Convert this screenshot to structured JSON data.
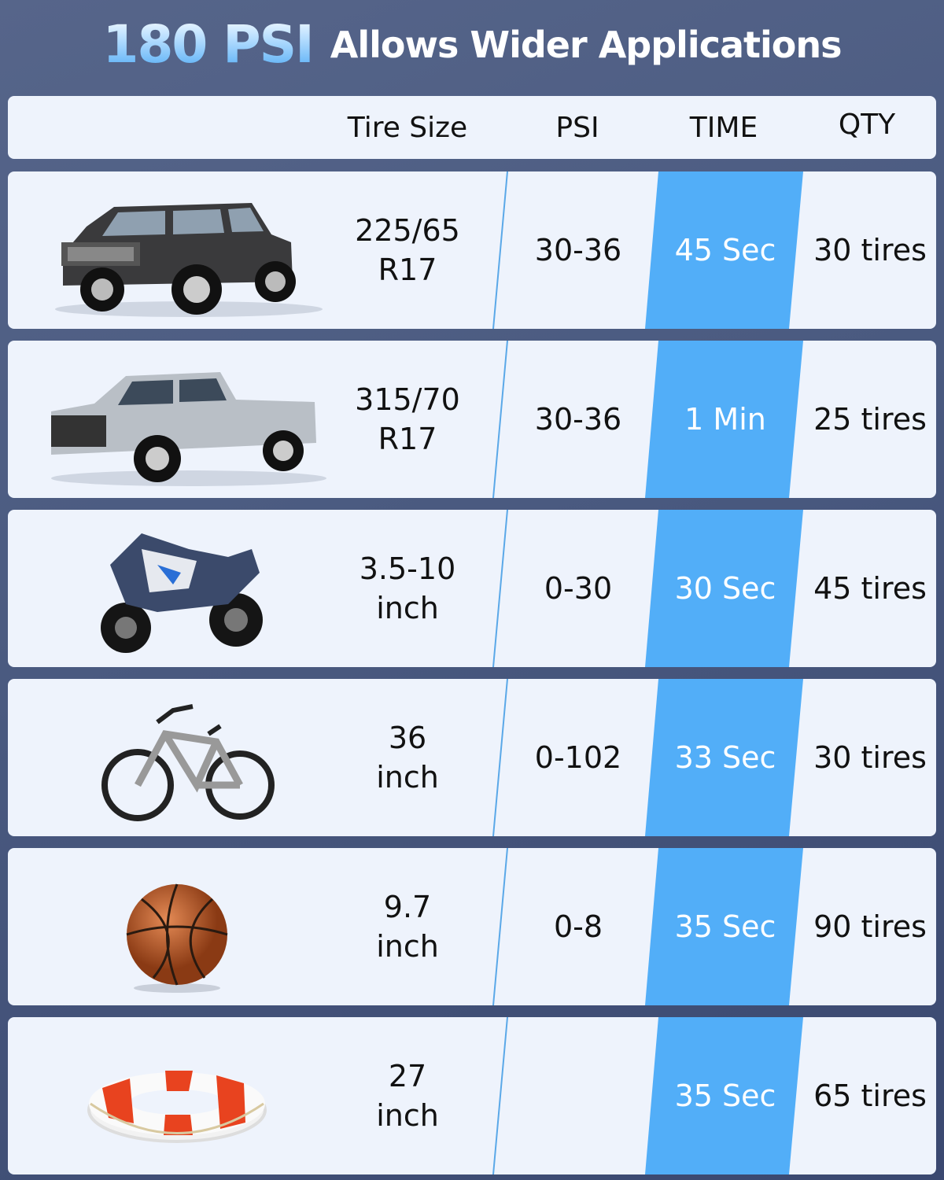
{
  "title": {
    "highlight": "180 PSI",
    "text": "Allows Wider Applications"
  },
  "colors": {
    "background": "#4a5a80",
    "card": "#eef3fc",
    "time_band": "#52aef8"
  },
  "header": {
    "tire_size": "Tire Size",
    "psi": "PSI",
    "time": "TIME",
    "qty": "QTY"
  },
  "rows": [
    {
      "item": "suv-image",
      "tire_size": [
        "225/65",
        "R17"
      ],
      "psi": "30-36",
      "time": "45 Sec",
      "qty": "30 tires"
    },
    {
      "item": "pickup-truck-image",
      "tire_size": [
        "315/70",
        "R17"
      ],
      "psi": "30-36",
      "time": "1 Min",
      "qty": "25 tires"
    },
    {
      "item": "motorcycle-image",
      "tire_size": [
        "3.5-10",
        "inch"
      ],
      "psi": "0-30",
      "time": "30 Sec",
      "qty": "45 tires"
    },
    {
      "item": "bicycle-image",
      "tire_size": [
        "36",
        "inch"
      ],
      "psi": "0-102",
      "time": "33 Sec",
      "qty": "30 tires"
    },
    {
      "item": "basketball-image",
      "tire_size": [
        "9.7",
        "inch"
      ],
      "psi": "0-8",
      "time": "35 Sec",
      "qty": "90 tires"
    },
    {
      "item": "life-ring-image",
      "tire_size": [
        "27",
        "inch"
      ],
      "psi": "",
      "time": "35 Sec",
      "qty": "65 tires"
    }
  ]
}
